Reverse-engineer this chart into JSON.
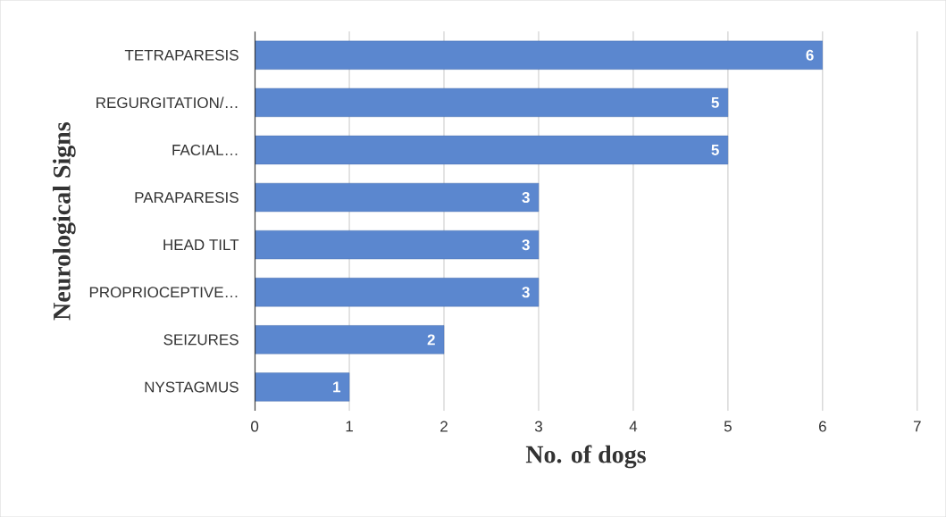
{
  "chart_data": {
    "type": "bar",
    "orientation": "horizontal",
    "xlabel": "No. of dogs",
    "ylabel": "Neurological Signs",
    "categories": [
      "TETRAPARESIS",
      "REGURGITATION/…",
      "FACIAL…",
      "PARAPARESIS",
      "HEAD TILT",
      "PROPRIOCEPTIVE…",
      "SEIZURES",
      "NYSTAGMUS"
    ],
    "values": [
      6,
      5,
      5,
      3,
      3,
      3,
      2,
      1
    ],
    "color": "#5b87cf",
    "xlim": [
      0,
      7
    ],
    "xticks": [
      0,
      1,
      2,
      3,
      4,
      5,
      6,
      7
    ],
    "grid": "x",
    "data_labels": true
  }
}
